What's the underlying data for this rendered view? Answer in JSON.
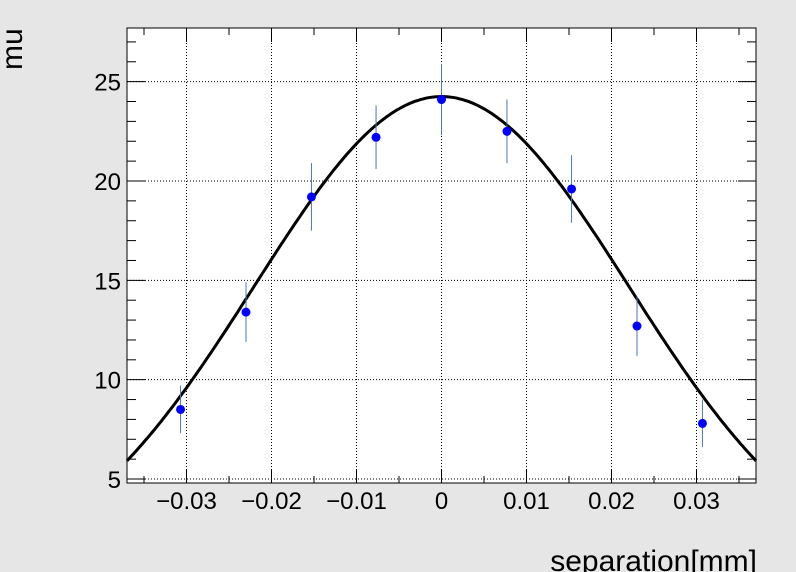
{
  "chart_data": {
    "type": "scatter",
    "title": "",
    "xlabel": "separation[mm]",
    "ylabel": "mu",
    "xlim": [
      -0.037,
      0.037
    ],
    "ylim": [
      4.8,
      27.7
    ],
    "grid": true,
    "x_ticks": [
      -0.03,
      -0.02,
      -0.01,
      0,
      0.01,
      0.02,
      0.03
    ],
    "x_tick_labels": [
      "−0.03",
      "−0.02",
      "−0.01",
      "0",
      "0.01",
      "0.02",
      "0.03"
    ],
    "y_ticks": [
      5,
      10,
      15,
      20,
      25
    ],
    "y_tick_labels": [
      "5",
      "10",
      "15",
      "20",
      "25"
    ],
    "series": [
      {
        "type": "scatter",
        "color": "#0000ff",
        "x": [
          -0.0307,
          -0.023,
          -0.0153,
          -0.0077,
          0.0,
          0.0077,
          0.0153,
          0.023,
          0.0307
        ],
        "y": [
          8.5,
          13.4,
          19.2,
          22.2,
          24.1,
          22.5,
          19.6,
          12.7,
          7.8
        ],
        "yerr": [
          1.2,
          1.5,
          1.7,
          1.6,
          1.8,
          1.6,
          1.7,
          1.5,
          1.2
        ]
      },
      {
        "type": "line",
        "color": "#000000",
        "model": "gaussian",
        "amplitude": 24.25,
        "mean": 0.0,
        "sigma": 0.02203
      }
    ],
    "errorbar_color": "#4a78b4",
    "axis_color": "#000000",
    "background": "#ffffff",
    "page_background": "#e6e6e6"
  }
}
